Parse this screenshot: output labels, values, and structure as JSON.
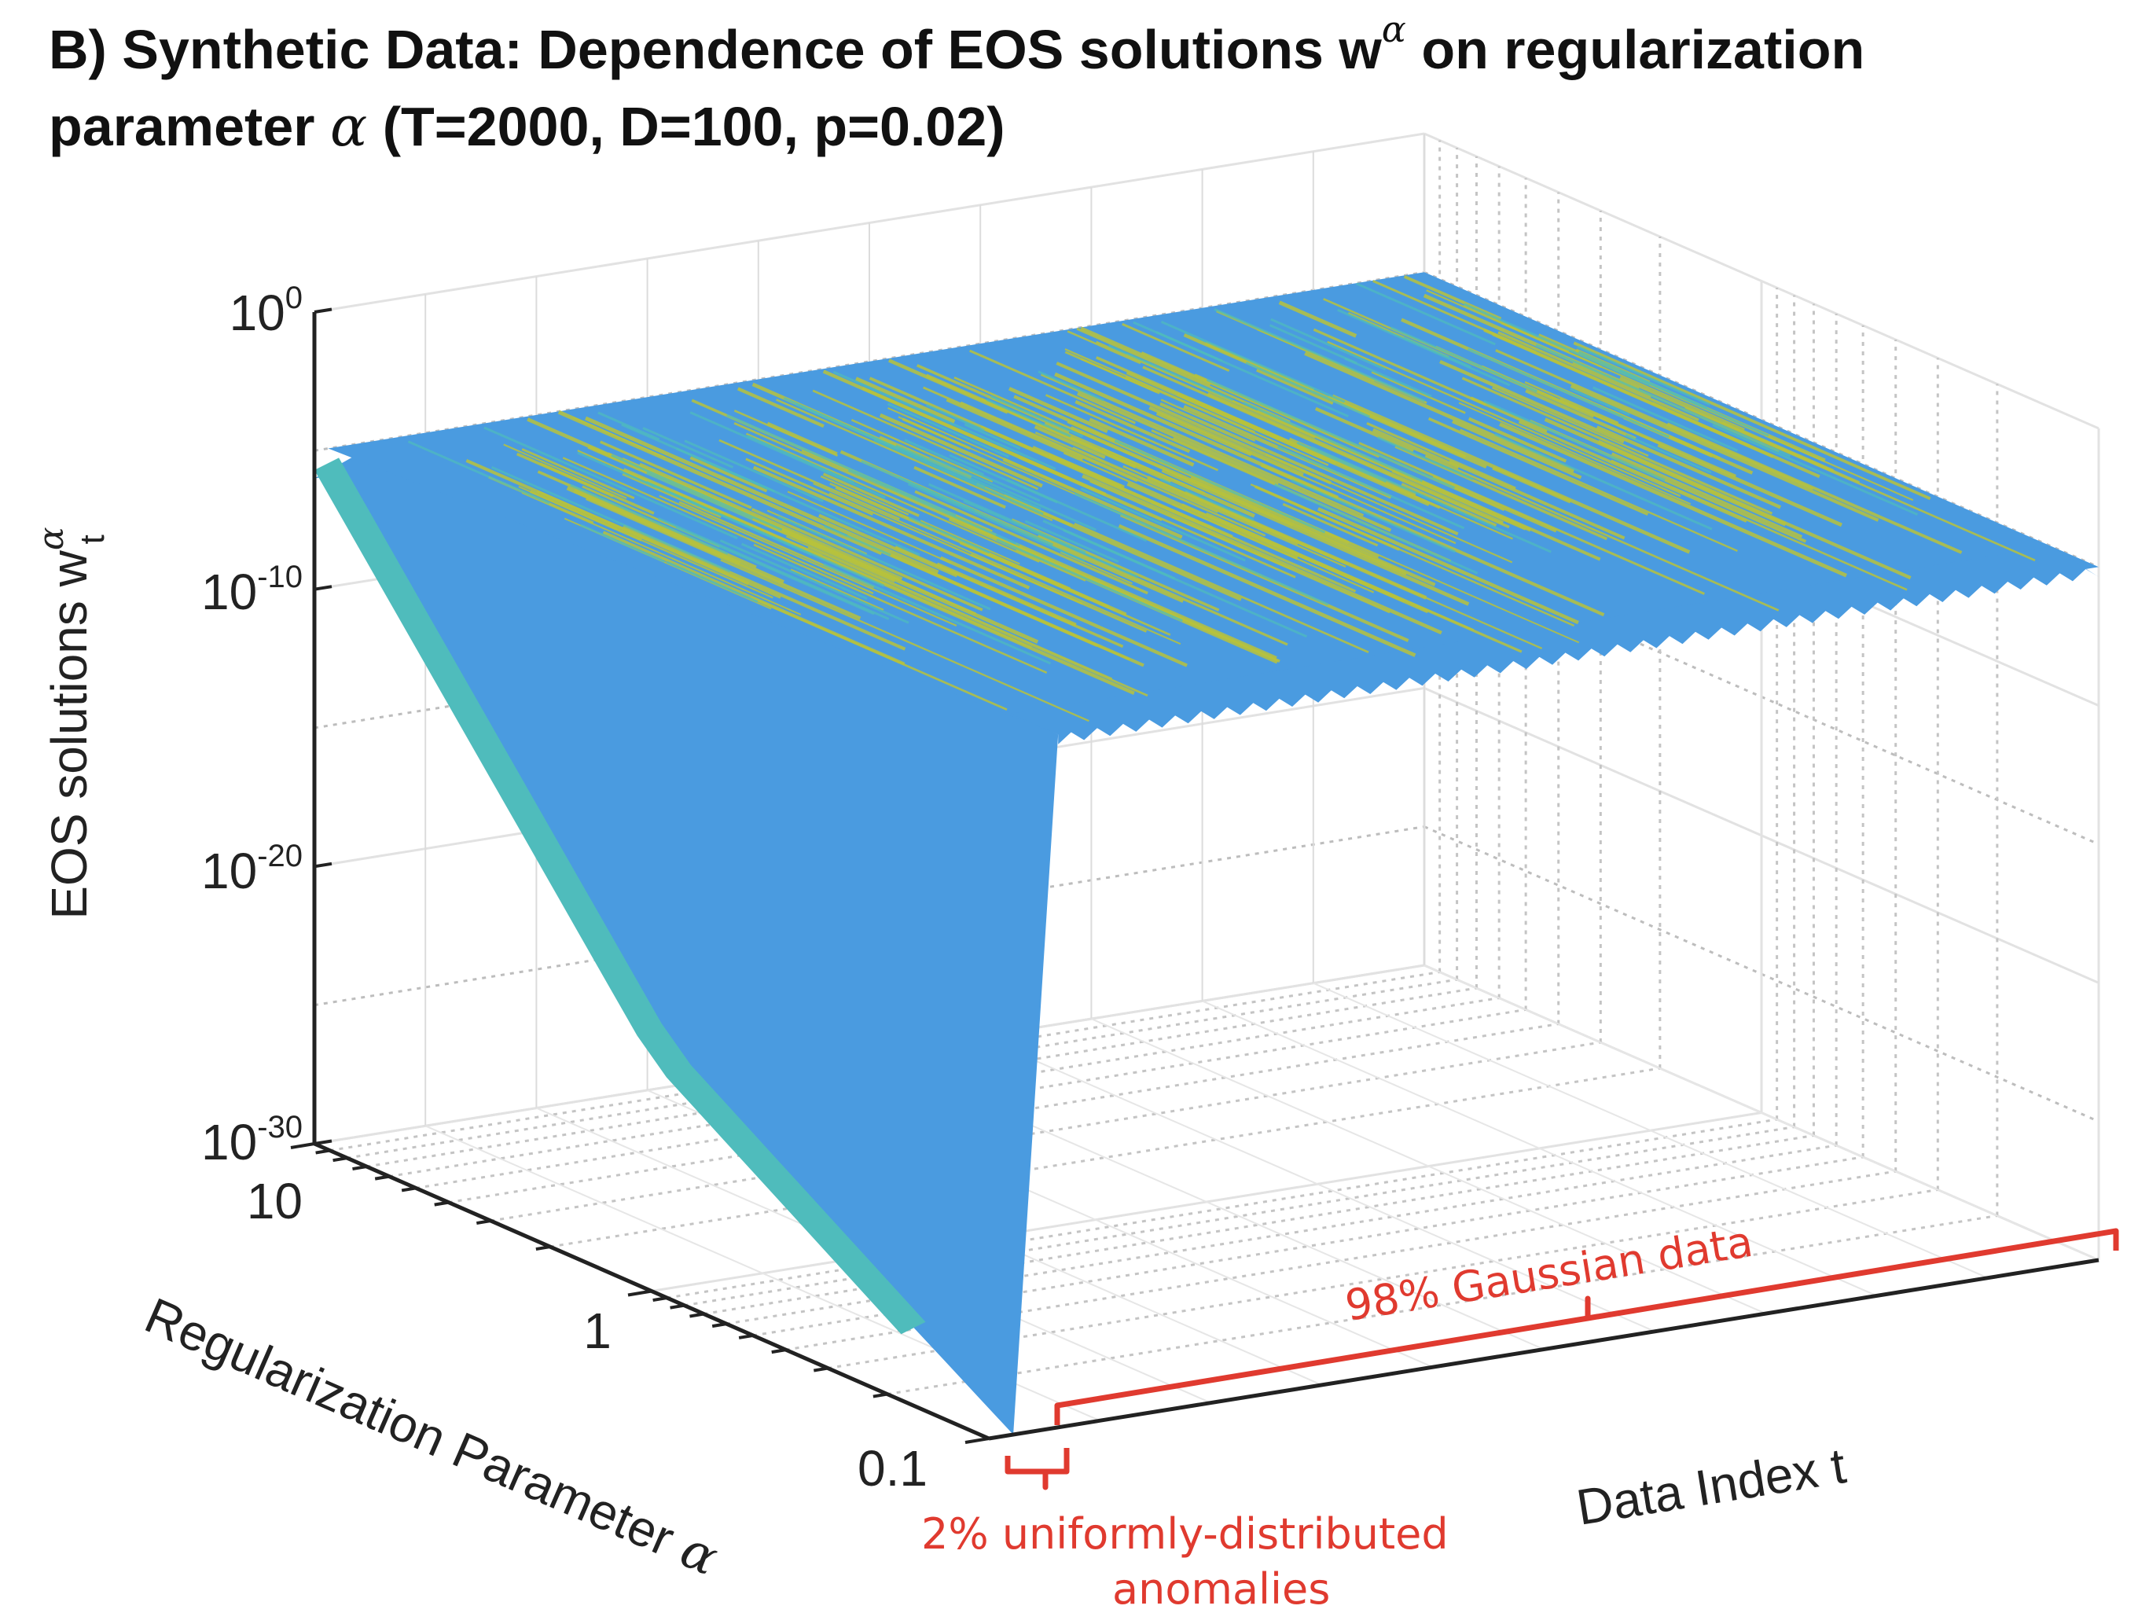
{
  "title": {
    "part1": "B) Synthetic Data: Dependence of EOS solutions w",
    "part1_sup": "α",
    "part2": " on regularization",
    "part3": "parameter ",
    "part3_sym": "α",
    "part4": " (T=2000, D=100, p=0.02)"
  },
  "chart_data": {
    "type": "surface3d",
    "title": "B) Synthetic Data: Dependence of EOS solutions w^α on regularization parameter α (T=2000, D=100, p=0.02)",
    "zlabel": "EOS solutions w",
    "zlabel_sup": "α",
    "zlabel_sub": "t",
    "xlabel": "Data Index t",
    "ylabel": "Regularization Parameter ",
    "ylabel_sym": "α",
    "z_scale": "log",
    "zlim": [
      1e-30,
      1
    ],
    "z_ticks": [
      {
        "base": "10",
        "exp": "0"
      },
      {
        "base": "10",
        "exp": "-10"
      },
      {
        "base": "10",
        "exp": "-20"
      },
      {
        "base": "10",
        "exp": "-30"
      }
    ],
    "alpha_scale": "log",
    "alpha_ticks": [
      "10",
      "1",
      "0.1"
    ],
    "t_range": [
      1,
      2000
    ],
    "grid": true,
    "series": [
      {
        "region": "uniformly-distributed anomalies",
        "t_range": [
          1,
          40
        ],
        "z_at_alpha_10": 1e-06,
        "z_at_alpha_1": 1e-22,
        "z_at_alpha_0.1": 1e-30
      },
      {
        "region": "Gaussian data",
        "t_range": [
          41,
          2000
        ],
        "z_at_alpha_10": 1e-05,
        "z_at_alpha_1": 1e-05,
        "z_at_alpha_0.1": 1e-05
      }
    ],
    "colors": {
      "surface_blue": "#4a9be0",
      "surface_teal": "#4fbcbc",
      "surface_yellow": "#b7c23c",
      "annotation_red": "#e03a2f"
    },
    "annotations": [
      {
        "text": "98% Gaussian data"
      },
      {
        "line1": "2% uniformly-distributed",
        "line2": "anomalies"
      }
    ]
  }
}
